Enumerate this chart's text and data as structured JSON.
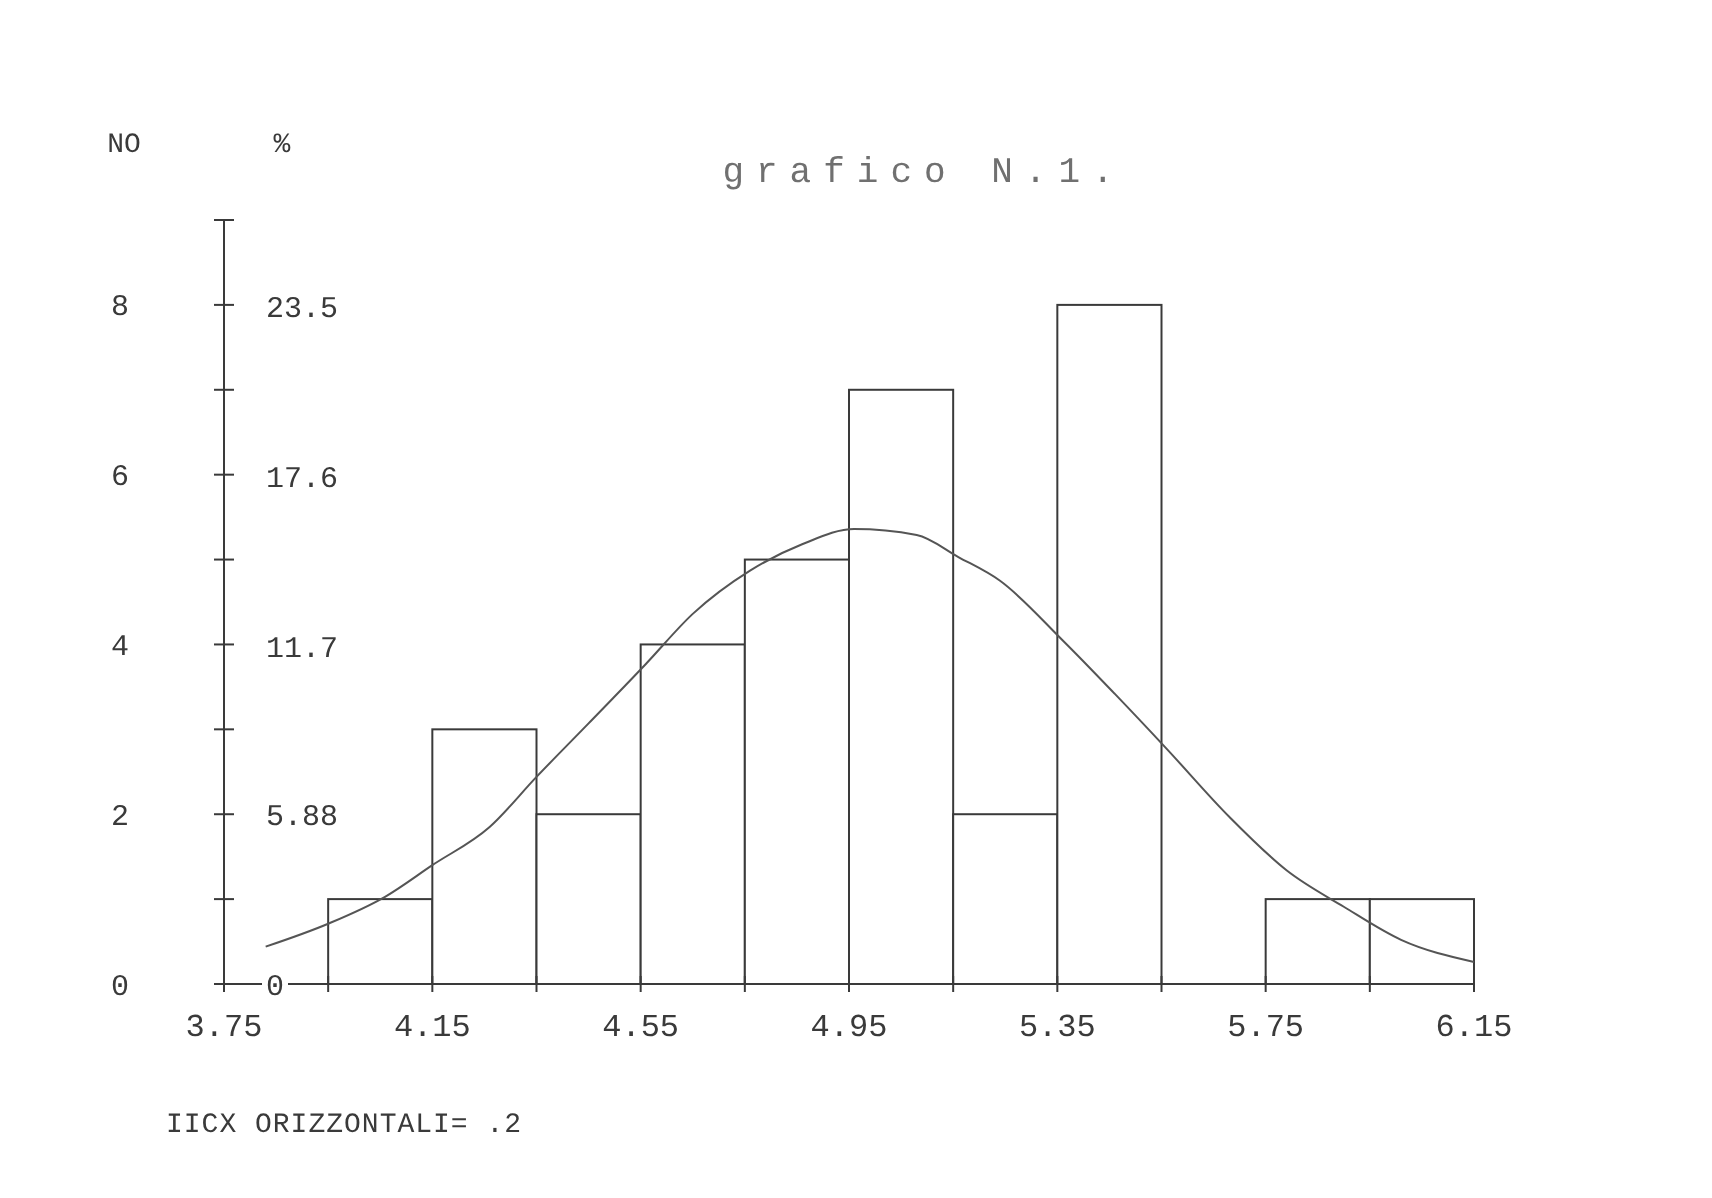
{
  "chart_data": {
    "type": "histogram",
    "title": "grafico N.1.",
    "ylabel": "NO",
    "y2label": "%",
    "annotations": [
      "IICX ORIZZONTALI= .2"
    ],
    "bins": [
      3.75,
      3.95,
      4.15,
      4.35,
      4.55,
      4.75,
      4.95,
      5.15,
      5.35,
      5.55,
      5.75,
      5.95,
      6.15
    ],
    "series": [
      {
        "color": "#ffffff",
        "values": [
          0,
          1,
          3,
          2,
          4,
          5,
          7,
          2,
          8,
          0,
          1,
          1
        ]
      },
      {
        "type": "line",
        "color": "#555555",
        "x": [
          3.83,
          3.95,
          4.06,
          4.15,
          4.26,
          4.35,
          4.45,
          4.56,
          4.65,
          4.76,
          4.86,
          4.96,
          5.08,
          5.16,
          5.24,
          5.36,
          5.46,
          5.56,
          5.68,
          5.79,
          5.9,
          6.01,
          6.15
        ],
        "values": [
          0.44,
          0.71,
          1.03,
          1.4,
          1.85,
          2.44,
          3.07,
          3.77,
          4.36,
          4.87,
          5.18,
          5.36,
          5.29,
          5.03,
          4.75,
          4.05,
          3.42,
          2.77,
          1.97,
          1.34,
          0.91,
          0.52,
          0.26
        ]
      }
    ],
    "xlim": [
      3.75,
      6.15
    ],
    "xticks": [
      3.75,
      {
        "value": 3.95,
        "label": null
      },
      4.15,
      {
        "value": 4.35,
        "label": null
      },
      4.55,
      {
        "value": 4.75,
        "label": null
      },
      4.95,
      {
        "value": 5.15,
        "label": null
      },
      5.35,
      {
        "value": 5.55,
        "label": null
      },
      5.75,
      {
        "value": 5.95,
        "label": null
      },
      6.15
    ],
    "ylim": [
      0,
      9
    ],
    "yticks": [
      0,
      {
        "value": 1,
        "label": null
      },
      2,
      {
        "value": 3,
        "label": null
      },
      4,
      {
        "value": 5,
        "label": null
      },
      6,
      {
        "value": 7,
        "label": null
      },
      8,
      {
        "value": 9,
        "label": null
      }
    ],
    "y2lim": [
      0,
      26.5
    ],
    "y2ticks": [
      0,
      5.88,
      11.7,
      17.6,
      23.5
    ]
  }
}
